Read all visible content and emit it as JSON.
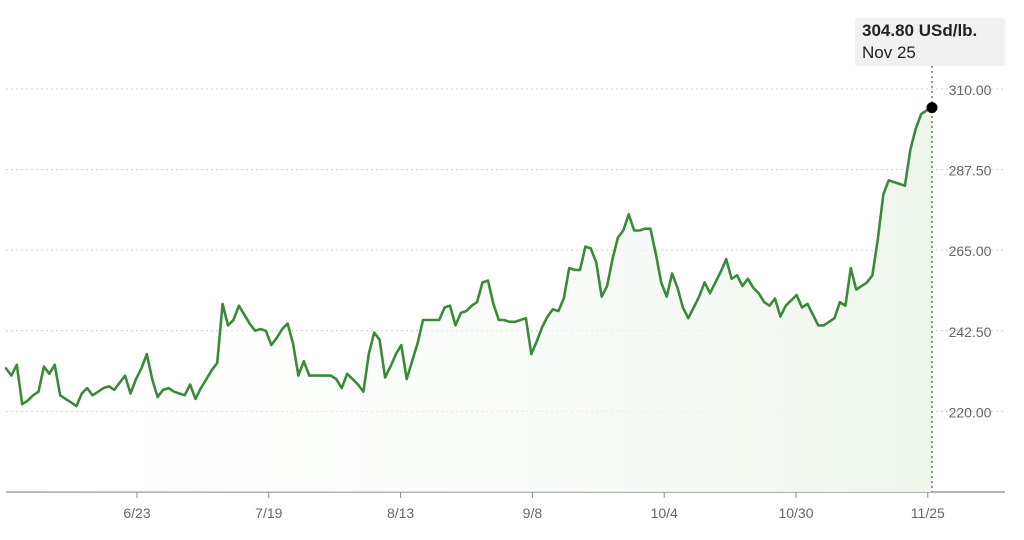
{
  "chart_data": {
    "type": "area",
    "title": "",
    "xlabel": "",
    "ylabel": "",
    "ylim": [
      197.5,
      312.5
    ],
    "x_ticks": [
      "6/23",
      "7/19",
      "8/13",
      "9/8",
      "10/4",
      "10/30",
      "11/25"
    ],
    "y_ticks": [
      "220.00",
      "242.50",
      "265.00",
      "287.50",
      "310.00"
    ],
    "grid": "horizontal-dotted",
    "colors": {
      "line": "#3a8a3a",
      "fill": "#eef6ec",
      "grid": "#cccccc",
      "crosshair": "#555555",
      "marker": "#000000"
    },
    "series": [
      {
        "values": [
          232.0,
          230.0,
          233.0,
          222.0,
          223.0,
          224.5,
          225.5,
          232.5,
          230.5,
          233.0,
          224.5,
          223.5,
          222.5,
          221.5,
          225.0,
          226.5,
          224.5,
          225.5,
          226.5,
          227.0,
          226.0,
          228.0,
          230.0,
          225.0,
          229.0,
          232.0,
          236.0,
          229.0,
          224.0,
          226.0,
          226.5,
          225.5,
          225.0,
          224.5,
          227.5,
          223.5,
          226.5,
          229.0,
          231.5,
          233.5,
          250.0,
          244.0,
          245.5,
          249.5,
          247.0,
          244.5,
          242.5,
          243.0,
          242.5,
          238.5,
          240.5,
          243.0,
          244.5,
          239.0,
          230.0,
          234.0,
          230.0,
          230.0,
          230.0,
          230.0,
          230.0,
          229.0,
          226.5,
          230.5,
          229.0,
          227.5,
          225.5,
          236.0,
          242.0,
          240.0,
          229.5,
          232.5,
          236.0,
          238.5,
          229.0,
          234.0,
          239.0,
          245.5,
          245.5,
          245.5,
          245.5,
          249.0,
          249.5,
          244.0,
          247.5,
          248.0,
          249.5,
          250.5,
          256.0,
          256.5,
          250.0,
          245.5,
          245.5,
          245.0,
          245.0,
          245.5,
          246.0,
          236.0,
          239.5,
          243.5,
          246.5,
          248.5,
          248.0,
          251.5,
          260.0,
          259.5,
          259.5,
          266.0,
          265.5,
          261.5,
          252.0,
          255.0,
          262.5,
          268.5,
          270.5,
          275.0,
          270.5,
          270.5,
          271.0,
          271.0,
          264.0,
          256.0,
          252.0,
          258.5,
          254.5,
          249.0,
          246.0,
          249.0,
          252.0,
          256.0,
          253.0,
          256.0,
          259.0,
          262.5,
          257.0,
          258.0,
          255.0,
          257.0,
          254.5,
          253.0,
          250.5,
          249.5,
          251.5,
          246.5,
          249.5,
          251.0,
          252.5,
          249.0,
          250.0,
          247.0,
          244.0,
          244.0,
          245.0,
          246.0,
          250.5,
          249.5,
          260.0,
          254.0,
          255.0,
          256.0,
          258.0,
          268.0,
          280.5,
          284.5,
          284.0,
          283.5,
          283.0,
          293.0,
          299.0,
          303.0,
          304.0,
          304.8
        ]
      }
    ]
  },
  "tooltip": {
    "value": "304.80 USd/lb.",
    "date": "Nov 25"
  }
}
